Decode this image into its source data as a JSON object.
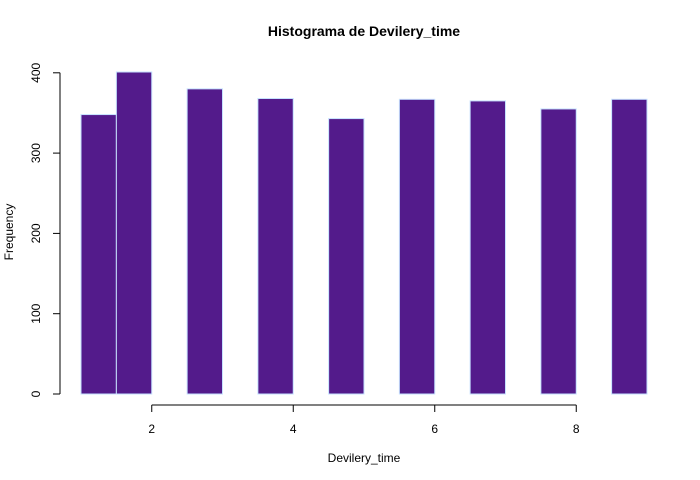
{
  "chart_data": {
    "type": "bar",
    "title": "Histograma de Devilery_time",
    "xlabel": "Devilery_time",
    "ylabel": "Frequency",
    "bin_edges": [
      1,
      1.5,
      2,
      2.5,
      3,
      3.5,
      4,
      4.5,
      5,
      5.5,
      6,
      6.5,
      7,
      7.5,
      8,
      8.5,
      9
    ],
    "values": [
      348,
      401,
      0,
      380,
      0,
      368,
      0,
      343,
      0,
      367,
      0,
      365,
      0,
      355,
      0,
      367
    ],
    "xlim": [
      1,
      9
    ],
    "ylim": [
      0,
      401
    ],
    "xticks": [
      2,
      4,
      6,
      8
    ],
    "yticks": [
      0,
      100,
      200,
      300,
      400
    ],
    "grid": false,
    "bar_color": "#531b8b",
    "bar_border_color": "#c6e2ff"
  }
}
